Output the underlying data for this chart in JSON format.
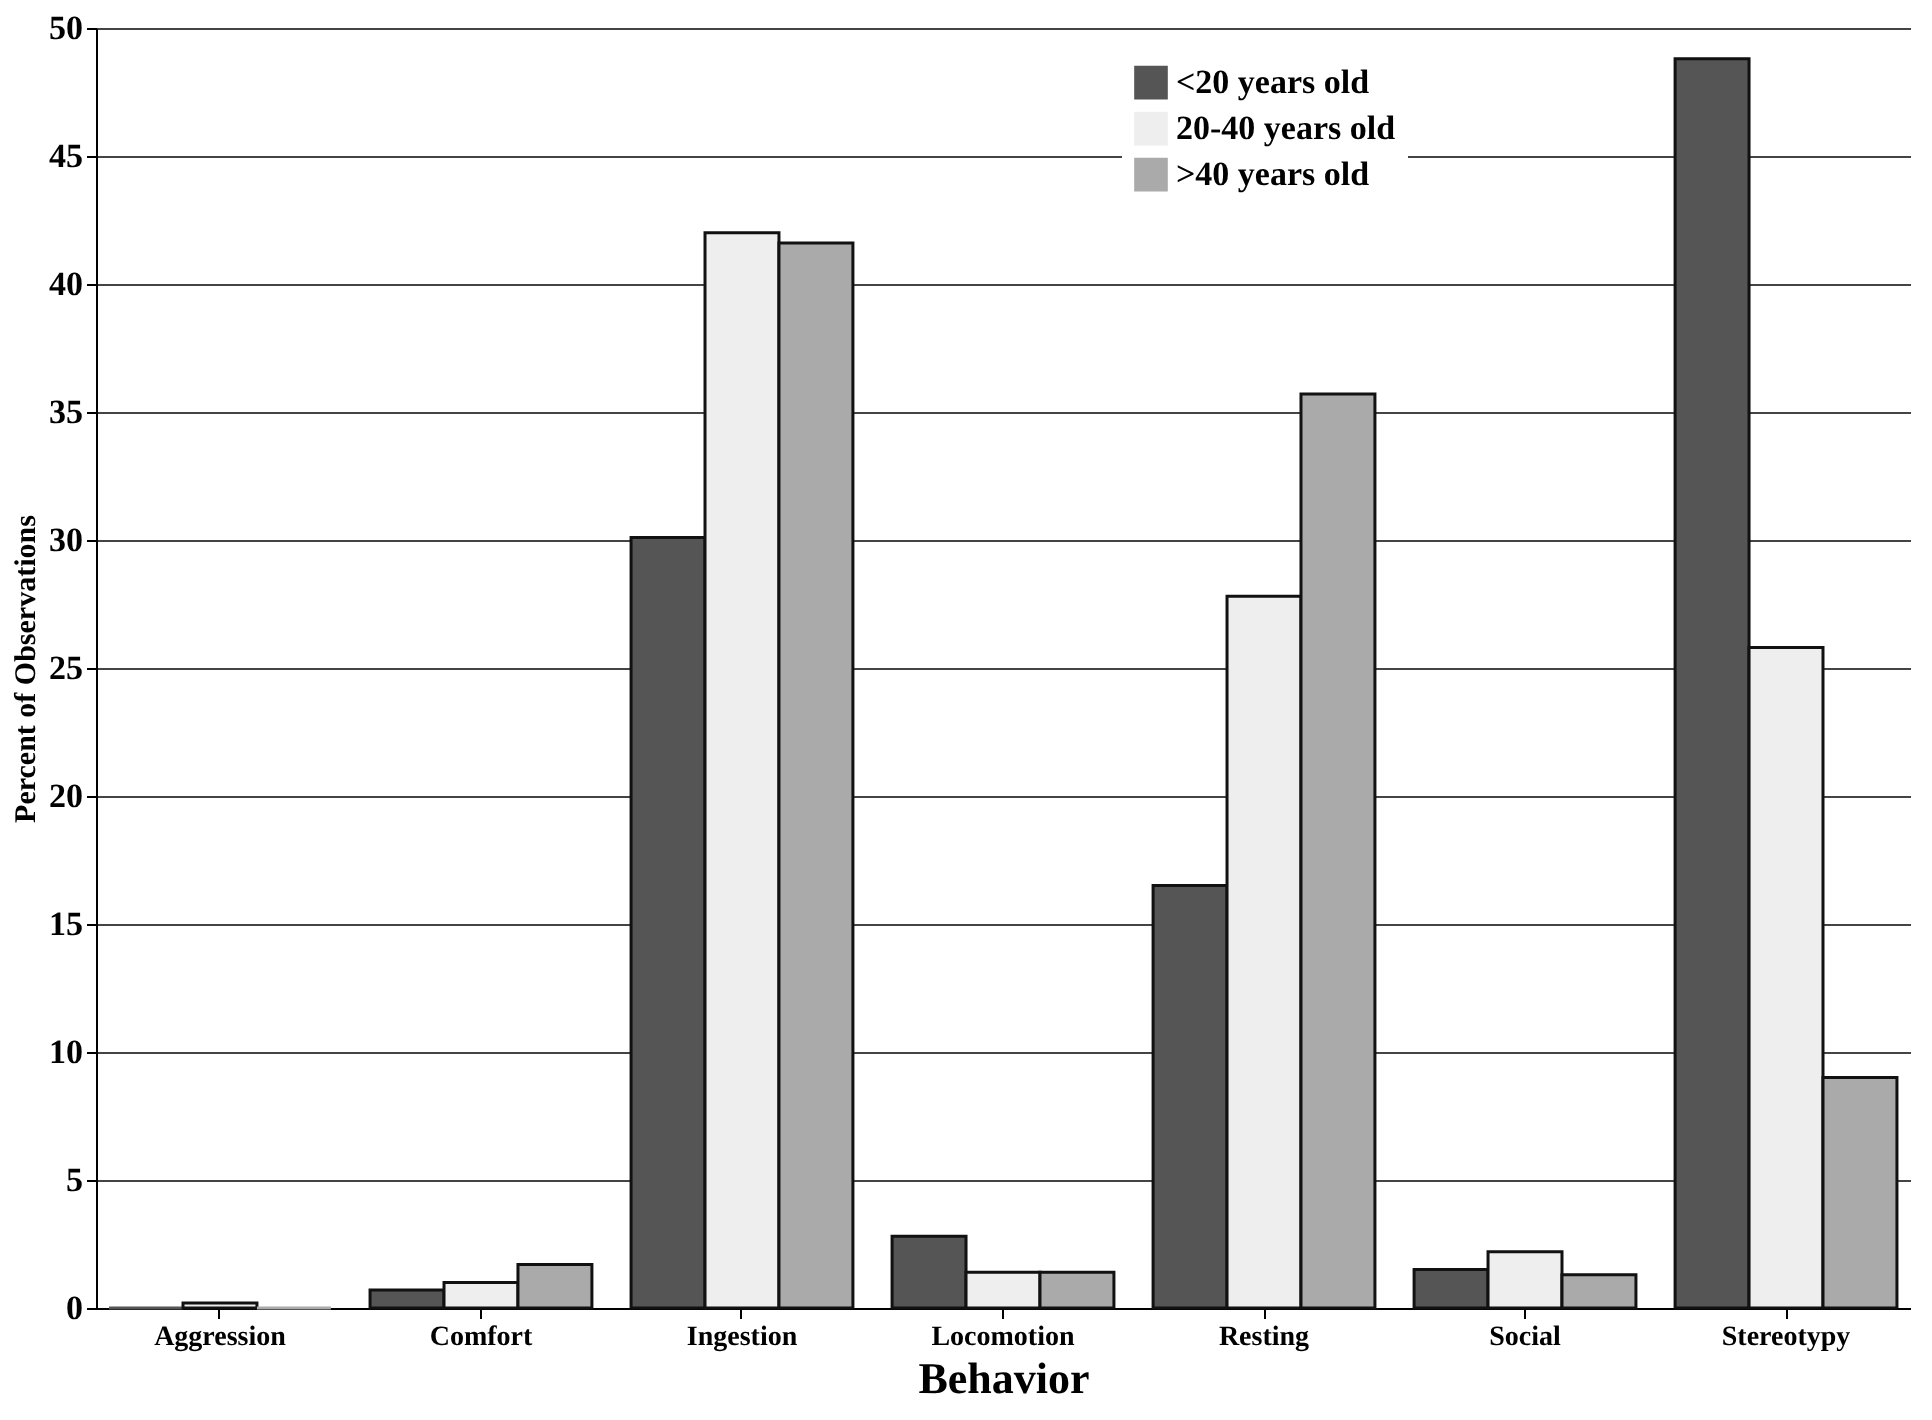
{
  "chart_data": {
    "type": "bar",
    "xlabel": "Behavior",
    "ylabel": "Percent of Observations",
    "categories": [
      "Aggression",
      "Comfort",
      "Ingestion",
      "Locomotion",
      "Resting",
      "Social",
      "Stereotypy"
    ],
    "series": [
      {
        "name": "<20 years old",
        "color": "#555555",
        "values": [
          0,
          0.7,
          30.1,
          2.8,
          16.5,
          1.5,
          48.8
        ]
      },
      {
        "name": "20-40 years old",
        "color": "#eeeeee",
        "values": [
          0.2,
          1.0,
          42,
          1.4,
          27.8,
          2.2,
          25.8
        ]
      },
      {
        "name": ">40 years old",
        "color": "#aaaaaa",
        "values": [
          0,
          1.7,
          41.6,
          1.4,
          35.7,
          1.3,
          9.0
        ]
      }
    ],
    "ylim": [
      0,
      50
    ],
    "yticks": [
      0,
      5,
      10,
      15,
      20,
      25,
      30,
      35,
      40,
      45,
      50
    ],
    "grid": "y",
    "legend": "top right"
  }
}
